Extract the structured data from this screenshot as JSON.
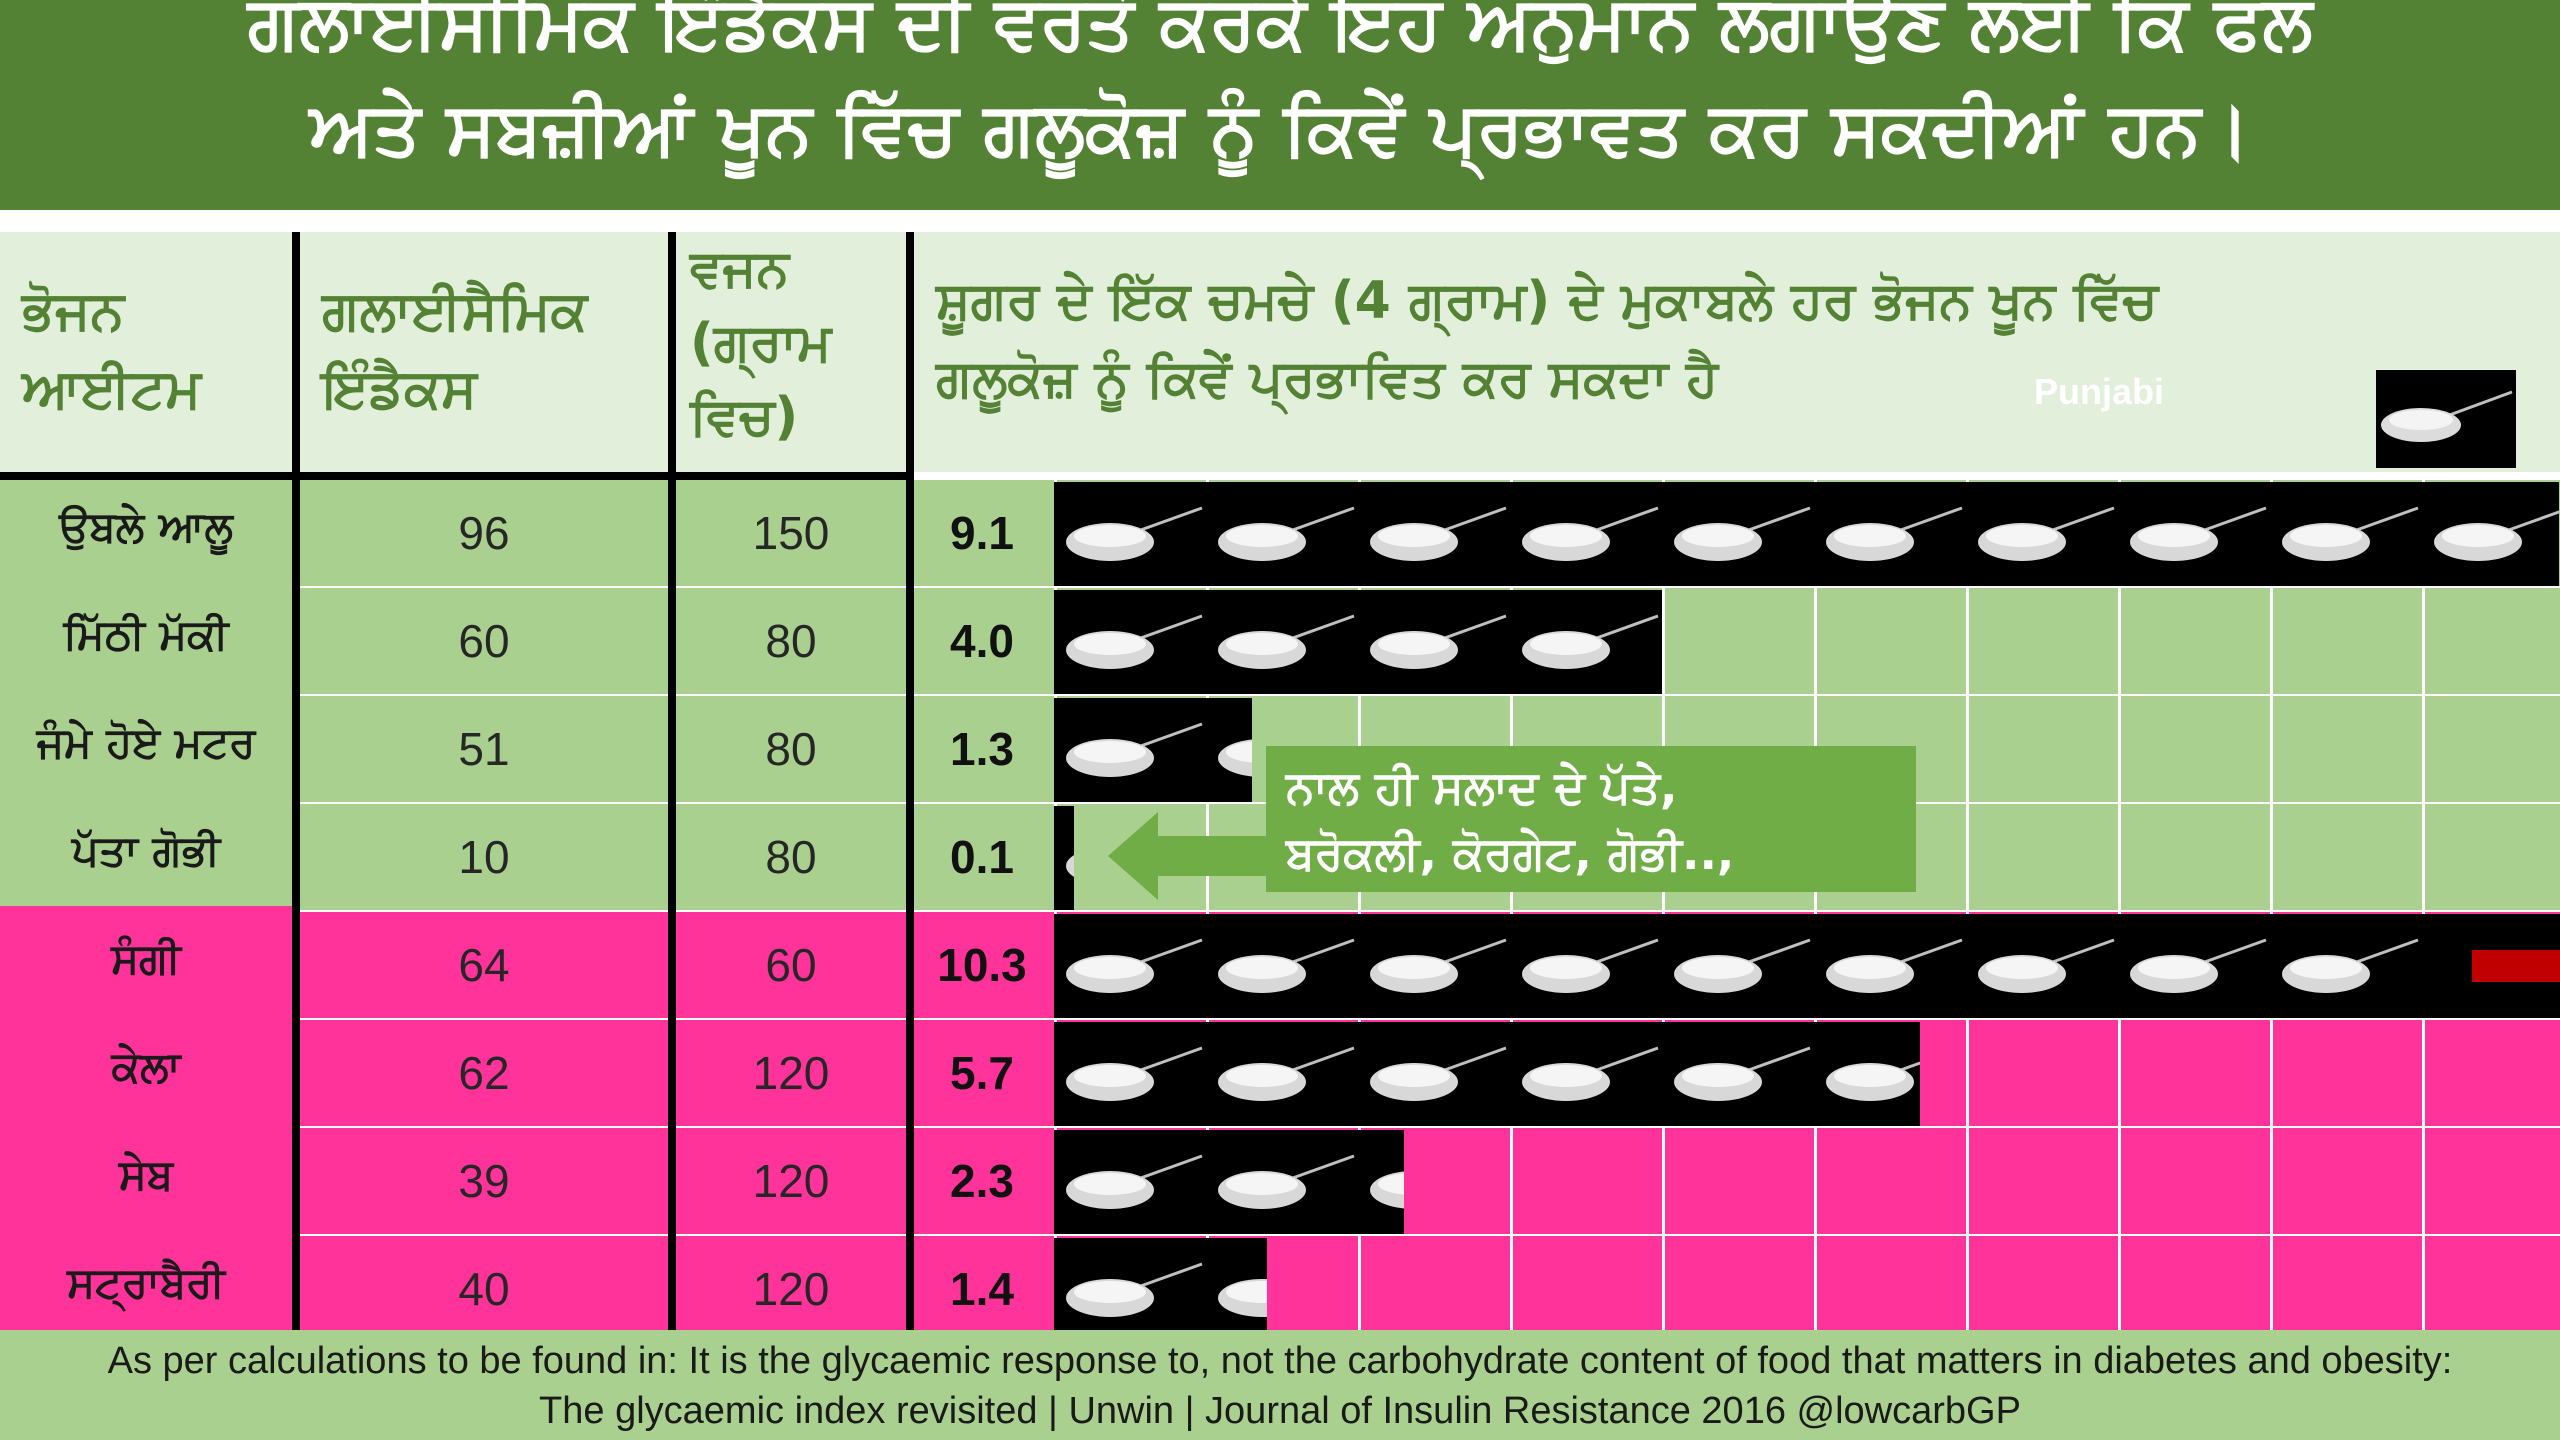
{
  "title": {
    "line1": "ਗਲਾਈਸੀਮਿਕ ਇੰਡੈਕਸ ਦੀ ਵਰਤੋਂ ਕਰਕੇ ਇਹ ਅਨੁਮਾਨ ਲਗਾਉਣ ਲਈ ਕਿ ਫਲ",
    "line2": "ਅਤੇ ਸਬਜ਼ੀਆਂ ਖੂਨ ਵਿੱਚ ਗਲੂਕੋਜ਼ ਨੂੰ ਕਿਵੇਂ ਪ੍ਰਭਾਵਤ ਕਰ ਸਕਦੀਆਂ ਹਨ।"
  },
  "headers": {
    "food": [
      "ਭੋਜਨ",
      "ਆਈਟਮ"
    ],
    "gi": [
      "ਗਲਾਈਸੈਮਿਕ",
      "ਇੰਡੈਕਸ"
    ],
    "weight": [
      "ਵਜਨ",
      "(ਗ੍ਰਾਮ",
      "ਵਿਚ)"
    ],
    "spoons": [
      "ਸ਼ੂਗਰ ਦੇ ਇੱਕ ਚਮਚੇ (4 ਗ੍ਰਾਮ) ਦੇ ਮੁਕਾਬਲੇ ਹਰ ਭੋਜਨ ਖੂਨ ਵਿੱਚ",
      "ਗਲੂਕੋਜ਼ ਨੂੰ ਕਿਵੇਂ ਪ੍ਰਭਾਵਿਤ ਕਰ ਸਕਦਾ ਹੈ"
    ],
    "watermark": "Punjabi"
  },
  "colors": {
    "title_bg": "#548235",
    "header_bg": "#E2EFDA",
    "vegetable_row": "#A9D08E",
    "fruit_row": "#FF3399",
    "note_bg": "#70AD47",
    "arrow_red": "#C00000"
  },
  "chart_data": {
    "type": "table",
    "unit": "teaspoons of sugar (4 g) equivalent",
    "rows": [
      {
        "food": "ਉਬਲੇ ਆਲੂ",
        "gi": "96",
        "weight": "150",
        "equivalent": "9.1",
        "group": "vegetable"
      },
      {
        "food": "ਮਿੱਠੀ ਮੱਕੀ",
        "gi": "60",
        "weight": "80",
        "equivalent": "4.0",
        "group": "vegetable"
      },
      {
        "food": "ਜੰਮੇ ਹੋਏ ਮਟਰ",
        "gi": "51",
        "weight": "80",
        "equivalent": "1.3",
        "group": "vegetable"
      },
      {
        "food": "ਪੱਤਾ ਗੋਭੀ",
        "gi": "10",
        "weight": "80",
        "equivalent": "0.1",
        "group": "vegetable"
      },
      {
        "food": "ਸੰਗੀ",
        "gi": "64",
        "weight": "60",
        "equivalent": "10.3",
        "group": "fruit"
      },
      {
        "food": "ਕੇਲਾ",
        "gi": "62",
        "weight": "120",
        "equivalent": "5.7",
        "group": "fruit"
      },
      {
        "food": "ਸੇਬ",
        "gi": "39",
        "weight": "120",
        "equivalent": "2.3",
        "group": "fruit"
      },
      {
        "food": "ਸਟ੍ਰਾਬੈਰੀ",
        "gi": "40",
        "weight": "120",
        "equivalent": "1.4",
        "group": "fruit"
      }
    ]
  },
  "note": {
    "line1": "ਨਾਲ ਹੀ ਸਲਾਦ ਦੇ ਪੱਤੇ,",
    "line2": "ਬਰੋਕਲੀ, ਕੋਰਗੇਟ, ਗੋਭੀ..,"
  },
  "footer": {
    "line1": "As per calculations to be found in: It is the glycaemic response to, not the carbohydrate content of food that matters in diabetes and obesity:",
    "line2": "The glycaemic index revisited | Unwin | Journal of Insulin Resistance 2016   @lowcarbGP"
  }
}
